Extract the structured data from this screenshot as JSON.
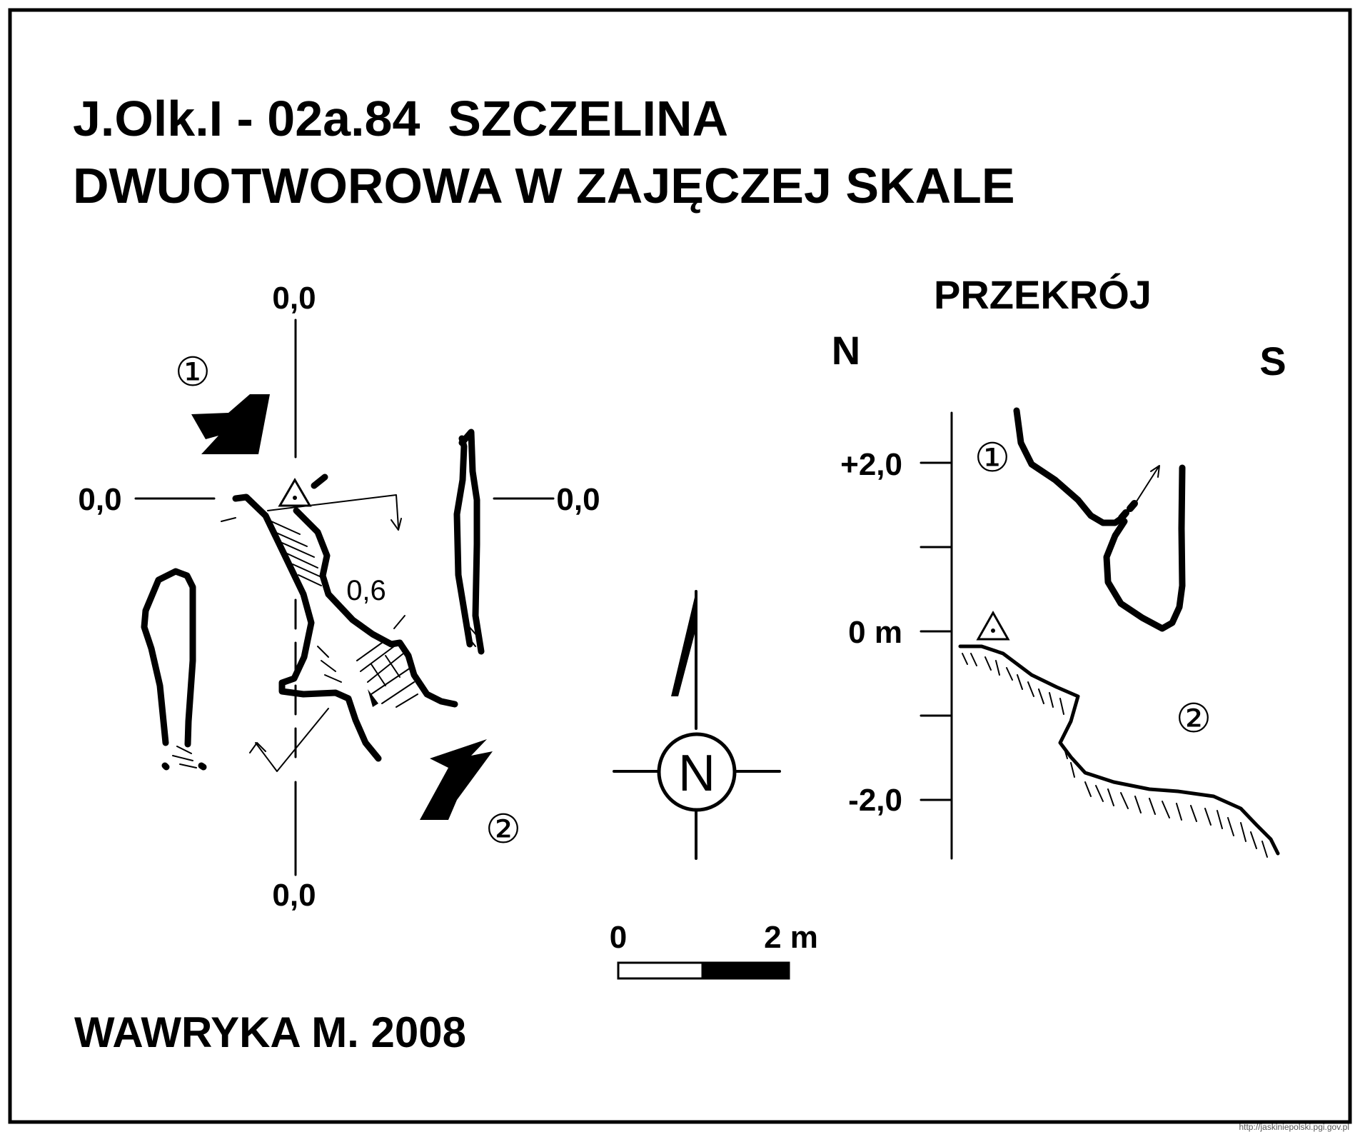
{
  "title": {
    "line1": "J.Olk.I - 02a.84  SZCZELINA",
    "line2": "DWUOTWOROWA W ZAJĘCZEJ SKALE"
  },
  "plan": {
    "coord_top": "0,0",
    "coord_left": "0,0",
    "coord_right": "0,0",
    "coord_bottom": "0,0",
    "entrance_1": "①",
    "entrance_2": "②",
    "height_label": "0,6"
  },
  "section": {
    "title": "PRZEKRÓJ",
    "dir_north": "N",
    "dir_south": "S",
    "scale_top": "+2,0",
    "scale_zero": "0 m",
    "scale_bottom": "-2,0",
    "entrance_1": "①",
    "entrance_2": "②"
  },
  "north_arrow": {
    "letter": "N"
  },
  "scale_bar": {
    "start": "0",
    "end": "2 m"
  },
  "author": "WAWRYKA M. 2008",
  "watermark": "http://jaskiniepolski.pgi.gov.pl",
  "colors": {
    "ink": "#000000",
    "paper": "#ffffff"
  }
}
